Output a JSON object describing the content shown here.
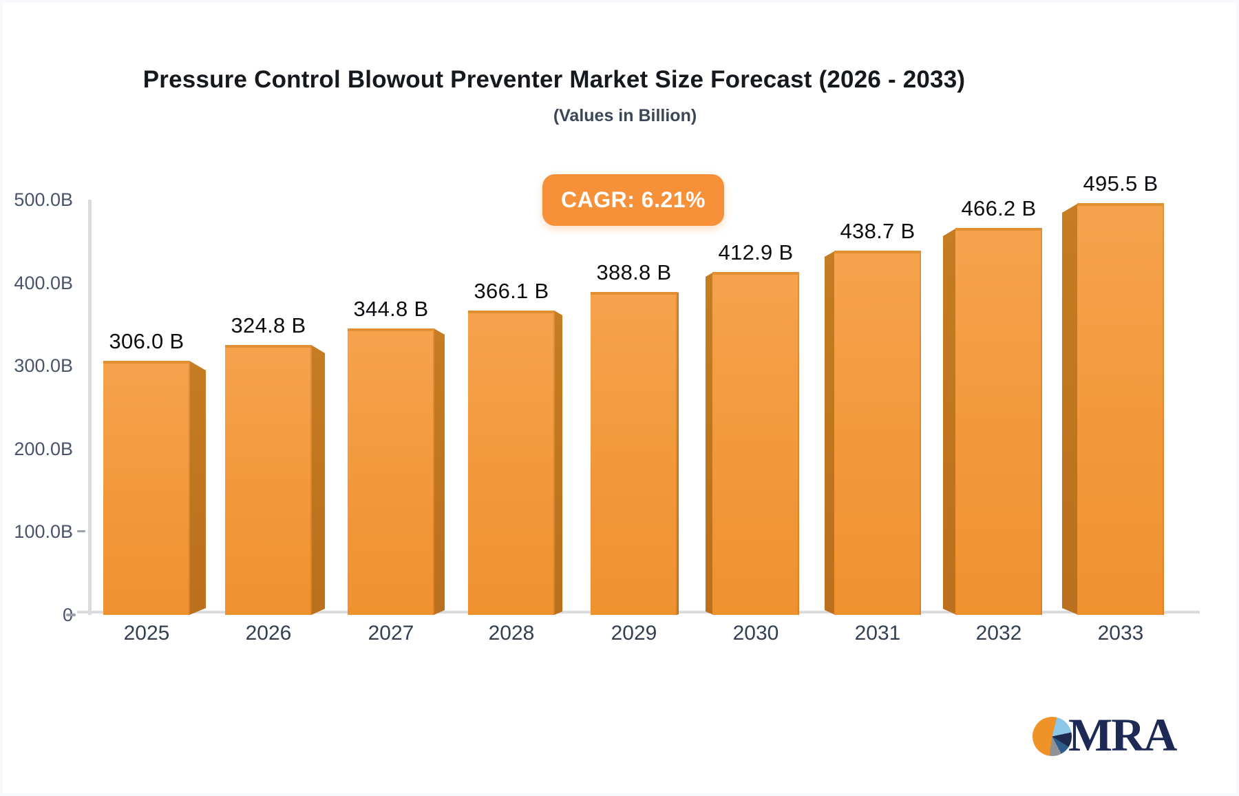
{
  "header": {
    "title": "Pressure Control Blowout Preventer Market Size Forecast (2026 - 2033)",
    "subtitle": "(Values in Billion)"
  },
  "badge": {
    "label": "CAGR: 6.21%",
    "background_color": "#F6913A",
    "text_color": "#FFFFFF"
  },
  "axis": {
    "y_ticks": [
      {
        "label": "500.0B",
        "value": 500,
        "dash": false
      },
      {
        "label": "400.0B",
        "value": 400,
        "dash": false
      },
      {
        "label": "300.0B",
        "value": 300,
        "dash": false
      },
      {
        "label": "200.0B",
        "value": 200,
        "dash": false
      },
      {
        "label": "100.0B",
        "value": 100,
        "dash": true
      },
      {
        "label": "0",
        "value": 0,
        "dash": true
      }
    ]
  },
  "chart_data": {
    "type": "bar",
    "title": "Pressure Control Blowout Preventer Market Size Forecast (2026 - 2033)",
    "subtitle": "(Values in Billion)",
    "cagr_label": "CAGR: 6.21%",
    "categories": [
      "2025",
      "2026",
      "2027",
      "2028",
      "2029",
      "2030",
      "2031",
      "2032",
      "2033"
    ],
    "values": [
      306.0,
      324.8,
      344.8,
      366.1,
      388.8,
      412.9,
      438.7,
      466.2,
      495.5
    ],
    "data_labels": [
      "306.0 B",
      "324.8 B",
      "344.8 B",
      "366.1 B",
      "388.8 B",
      "412.9 B",
      "438.7 B",
      "466.2 B",
      "495.5 B"
    ],
    "xlabel": "",
    "ylabel": "",
    "ylim": [
      0,
      500
    ],
    "ytick_step": 100,
    "grid": false,
    "legend": false,
    "bar_face_color": "#F29A3E",
    "bar_side_color": "#BD7320",
    "style": "3d-perspective-bars"
  },
  "logo": {
    "text": "MRA",
    "pie_colors": [
      "#EF9228",
      "#8CC7E8",
      "#1E2A4D",
      "#2D5E8A",
      "#909295"
    ]
  }
}
